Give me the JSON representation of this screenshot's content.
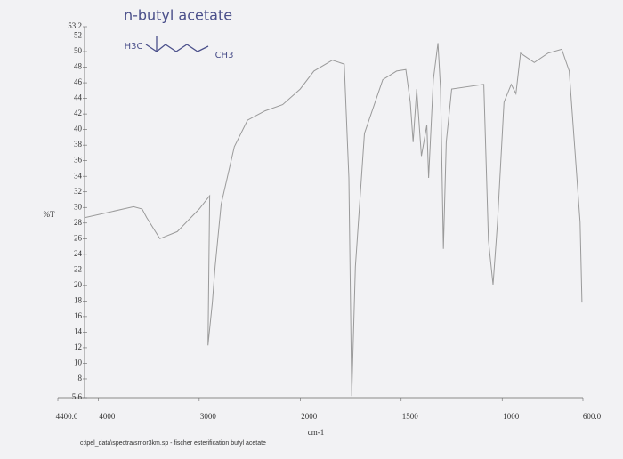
{
  "chart_data": {
    "type": "line",
    "title": "n-butyl acetate",
    "annotations": [
      "H3C",
      "CH3"
    ],
    "ylabel": "%T",
    "xlabel": "cm-1",
    "footer": "c:\\pel_data\\spectra\\smor3km.sp - fischer esterification butyl acetate",
    "color": "#9a9a9a",
    "xlim": [
      4400,
      600
    ],
    "x_scale_break": 2000,
    "ylim": [
      5.6,
      53.2
    ],
    "xticks": [
      {
        "value": 4400,
        "label": "4400.0"
      },
      4000,
      3000,
      2000,
      1500,
      1000,
      {
        "value": 600,
        "label": "600.0"
      }
    ],
    "yticks": [
      5.6,
      8,
      10,
      12,
      14,
      16,
      18,
      20,
      22,
      24,
      26,
      28,
      30,
      32,
      34,
      36,
      38,
      40,
      42,
      44,
      46,
      48,
      50,
      52,
      53.2
    ],
    "x": [
      4130,
      3650,
      3565,
      3520,
      3390,
      3217,
      3000,
      2896,
      2913,
      2870,
      2843,
      2783,
      2652,
      2522,
      2348,
      2174,
      2000,
      1932,
      1841,
      1782,
      1759,
      1745,
      1727,
      1682,
      1591,
      1523,
      1477,
      1455,
      1441,
      1423,
      1400,
      1373,
      1364,
      1341,
      1318,
      1305,
      1291,
      1277,
      1250,
      1091,
      1068,
      1045,
      1023,
      991,
      955,
      932,
      909,
      841,
      773,
      705,
      668,
      614,
      605
    ],
    "values": [
      28.7,
      30.1,
      29.8,
      28.7,
      26.0,
      26.9,
      29.8,
      31.5,
      12.3,
      17.8,
      22.4,
      30.4,
      37.8,
      41.2,
      42.4,
      43.2,
      45.2,
      47.5,
      48.9,
      48.4,
      33.8,
      5.8,
      22.4,
      39.5,
      46.4,
      47.5,
      47.7,
      43.5,
      38.4,
      45.2,
      36.6,
      40.6,
      33.8,
      46.4,
      51.1,
      45.2,
      24.7,
      38.4,
      45.2,
      45.8,
      25.8,
      20.1,
      28.1,
      43.5,
      45.8,
      44.6,
      49.8,
      48.6,
      49.8,
      50.3,
      47.5,
      28.1,
      17.8
    ]
  }
}
